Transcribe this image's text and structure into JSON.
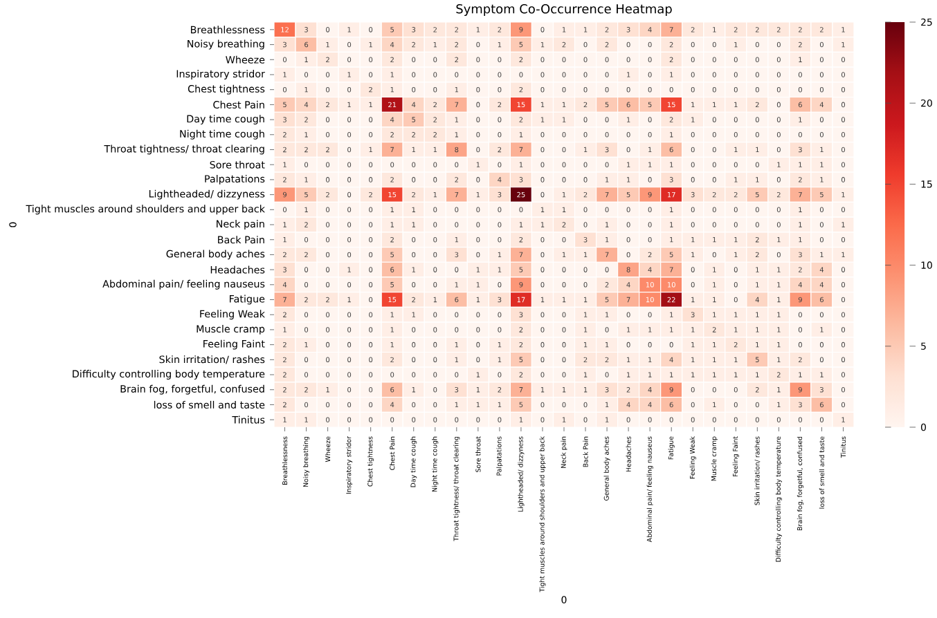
{
  "chart_data": {
    "type": "heatmap",
    "title": "Symptom Co-Occurrence Heatmap",
    "xlabel": "0",
    "ylabel": "0",
    "categories": [
      "Breathlessness",
      "Noisy breathing",
      "Wheeze",
      "Inspiratory stridor",
      "Chest tightness",
      "Chest Pain",
      "Day time cough",
      "Night time cough",
      "Throat tightness/ throat clearing",
      "Sore throat",
      "Palpatations",
      "Lightheaded/ dizzyness",
      "Tight muscles around shoulders and upper back",
      "Neck pain",
      "Back Pain",
      "General body aches",
      "Headaches",
      "Abdominal pain/ feeling nauseus",
      "Fatigue",
      "Feeling Weak",
      "Muscle cramp",
      "Feeling Faint",
      "Skin irritation/ rashes",
      "Difficulty controlling body temperature",
      "Brain fog, forgetful, confused",
      "loss of smell and taste",
      "Tinitus"
    ],
    "y_categories": [
      "Breathlessness",
      "Noisy breathing",
      "Wheeze",
      "Inspiratory stridor",
      "Chest tightness",
      "Chest Pain",
      "Day time cough",
      "Night time cough",
      "Throat tightness/ throat clearing",
      "Sore throat",
      "Palpatations",
      "Lightheaded/ dizzyness",
      "Tight muscles around shoulders and upper back",
      "Neck pain",
      "Back Pain",
      "General body aches",
      "Headaches",
      "Abdominal pain/ feeling nauseus",
      "Fatigue",
      "Feeling Weak",
      "Muscle cramp",
      "Feeling Faint",
      "Skin irritation/ rashes",
      "Difficulty controlling body temperature",
      "Brain fog, forgetful, confused",
      "loss of smell and taste",
      "Tinitus"
    ],
    "cells": [
      [
        12,
        3,
        0,
        1,
        0,
        5,
        3,
        2,
        2,
        1,
        2,
        9,
        0,
        1,
        1,
        2,
        3,
        4,
        7,
        2,
        1,
        2,
        2,
        2,
        2,
        2,
        1
      ],
      [
        3,
        6,
        1,
        0,
        1,
        4,
        2,
        1,
        2,
        0,
        1,
        5,
        1,
        2,
        0,
        2,
        0,
        0,
        2,
        0,
        0,
        1,
        0,
        0,
        2,
        0,
        1
      ],
      [
        0,
        1,
        2,
        0,
        0,
        2,
        0,
        0,
        2,
        0,
        0,
        2,
        0,
        0,
        0,
        0,
        0,
        0,
        2,
        0,
        0,
        0,
        0,
        0,
        1,
        0,
        0
      ],
      [
        1,
        0,
        0,
        1,
        0,
        1,
        0,
        0,
        0,
        0,
        0,
        0,
        0,
        0,
        0,
        0,
        1,
        0,
        1,
        0,
        0,
        0,
        0,
        0,
        0,
        0,
        0
      ],
      [
        0,
        1,
        0,
        0,
        2,
        1,
        0,
        0,
        1,
        0,
        0,
        2,
        0,
        0,
        0,
        0,
        0,
        0,
        0,
        0,
        0,
        0,
        0,
        0,
        0,
        0,
        0
      ],
      [
        5,
        4,
        2,
        1,
        1,
        21,
        4,
        2,
        7,
        0,
        2,
        15,
        1,
        1,
        2,
        5,
        6,
        5,
        15,
        1,
        1,
        1,
        2,
        0,
        6,
        4,
        0
      ],
      [
        3,
        2,
        0,
        0,
        0,
        4,
        5,
        2,
        1,
        0,
        0,
        2,
        1,
        1,
        0,
        0,
        1,
        0,
        2,
        1,
        0,
        0,
        0,
        0,
        1,
        0,
        0
      ],
      [
        2,
        1,
        0,
        0,
        0,
        2,
        2,
        2,
        1,
        0,
        0,
        1,
        0,
        0,
        0,
        0,
        0,
        0,
        1,
        0,
        0,
        0,
        0,
        0,
        0,
        0,
        0
      ],
      [
        2,
        2,
        2,
        0,
        1,
        7,
        1,
        1,
        8,
        0,
        2,
        7,
        0,
        0,
        1,
        3,
        0,
        1,
        6,
        0,
        0,
        1,
        1,
        0,
        3,
        1,
        0
      ],
      [
        1,
        0,
        0,
        0,
        0,
        0,
        0,
        0,
        0,
        1,
        0,
        1,
        0,
        0,
        0,
        0,
        1,
        1,
        1,
        0,
        0,
        0,
        0,
        1,
        1,
        1,
        0
      ],
      [
        2,
        1,
        0,
        0,
        0,
        2,
        0,
        0,
        2,
        0,
        4,
        3,
        0,
        0,
        0,
        1,
        1,
        0,
        3,
        0,
        0,
        1,
        1,
        0,
        2,
        1,
        0
      ],
      [
        9,
        5,
        2,
        0,
        2,
        15,
        2,
        1,
        7,
        1,
        3,
        25,
        0,
        1,
        2,
        7,
        5,
        9,
        17,
        3,
        2,
        2,
        5,
        2,
        7,
        5,
        1
      ],
      [
        0,
        1,
        0,
        0,
        0,
        1,
        1,
        0,
        0,
        0,
        0,
        0,
        1,
        1,
        0,
        0,
        0,
        0,
        1,
        0,
        0,
        0,
        0,
        0,
        1,
        0,
        0
      ],
      [
        1,
        2,
        0,
        0,
        0,
        1,
        1,
        0,
        0,
        0,
        0,
        1,
        1,
        2,
        0,
        1,
        0,
        0,
        1,
        0,
        0,
        0,
        0,
        0,
        1,
        0,
        1
      ],
      [
        1,
        0,
        0,
        0,
        0,
        2,
        0,
        0,
        1,
        0,
        0,
        2,
        0,
        0,
        3,
        1,
        0,
        0,
        1,
        1,
        1,
        1,
        2,
        1,
        1,
        0,
        0
      ],
      [
        2,
        2,
        0,
        0,
        0,
        5,
        0,
        0,
        3,
        0,
        1,
        7,
        0,
        1,
        1,
        7,
        0,
        2,
        5,
        1,
        0,
        1,
        2,
        0,
        3,
        1,
        1
      ],
      [
        3,
        0,
        0,
        1,
        0,
        6,
        1,
        0,
        0,
        1,
        1,
        5,
        0,
        0,
        0,
        0,
        8,
        4,
        7,
        0,
        1,
        0,
        1,
        1,
        2,
        4,
        0
      ],
      [
        4,
        0,
        0,
        0,
        0,
        5,
        0,
        0,
        1,
        1,
        0,
        9,
        0,
        0,
        0,
        2,
        4,
        10,
        10,
        0,
        1,
        0,
        1,
        1,
        4,
        4,
        0
      ],
      [
        7,
        2,
        2,
        1,
        0,
        15,
        2,
        1,
        6,
        1,
        3,
        17,
        1,
        1,
        1,
        5,
        7,
        10,
        22,
        1,
        1,
        0,
        4,
        1,
        9,
        6,
        0
      ],
      [
        2,
        0,
        0,
        0,
        0,
        1,
        1,
        0,
        0,
        0,
        0,
        3,
        0,
        0,
        1,
        1,
        0,
        0,
        1,
        3,
        1,
        1,
        1,
        1,
        0,
        0,
        0
      ],
      [
        1,
        0,
        0,
        0,
        0,
        1,
        0,
        0,
        0,
        0,
        0,
        2,
        0,
        0,
        1,
        0,
        1,
        1,
        1,
        1,
        2,
        1,
        1,
        1,
        0,
        1,
        0
      ],
      [
        2,
        1,
        0,
        0,
        0,
        1,
        0,
        0,
        1,
        0,
        1,
        2,
        0,
        0,
        1,
        1,
        0,
        0,
        0,
        1,
        1,
        2,
        1,
        1,
        0,
        0,
        0
      ],
      [
        2,
        0,
        0,
        0,
        0,
        2,
        0,
        0,
        1,
        0,
        1,
        5,
        0,
        0,
        2,
        2,
        1,
        1,
        4,
        1,
        1,
        1,
        5,
        1,
        2,
        0,
        0
      ],
      [
        2,
        0,
        0,
        0,
        0,
        0,
        0,
        0,
        0,
        1,
        0,
        2,
        0,
        0,
        1,
        0,
        1,
        1,
        1,
        1,
        1,
        1,
        1,
        2,
        1,
        1,
        0
      ],
      [
        2,
        2,
        1,
        0,
        0,
        6,
        1,
        0,
        3,
        1,
        2,
        7,
        1,
        1,
        1,
        3,
        2,
        4,
        9,
        0,
        0,
        0,
        2,
        1,
        9,
        3,
        0
      ],
      [
        2,
        0,
        0,
        0,
        0,
        4,
        0,
        0,
        1,
        1,
        1,
        5,
        0,
        0,
        0,
        1,
        4,
        4,
        6,
        0,
        1,
        0,
        0,
        1,
        3,
        6,
        0
      ],
      [
        1,
        1,
        0,
        0,
        0,
        0,
        0,
        0,
        0,
        0,
        0,
        1,
        0,
        1,
        0,
        1,
        0,
        0,
        0,
        0,
        0,
        0,
        0,
        0,
        0,
        0,
        1
      ]
    ],
    "data_labels": true,
    "clim": [
      0,
      25
    ],
    "cticks": [
      0,
      5,
      10,
      15,
      20,
      25
    ]
  }
}
